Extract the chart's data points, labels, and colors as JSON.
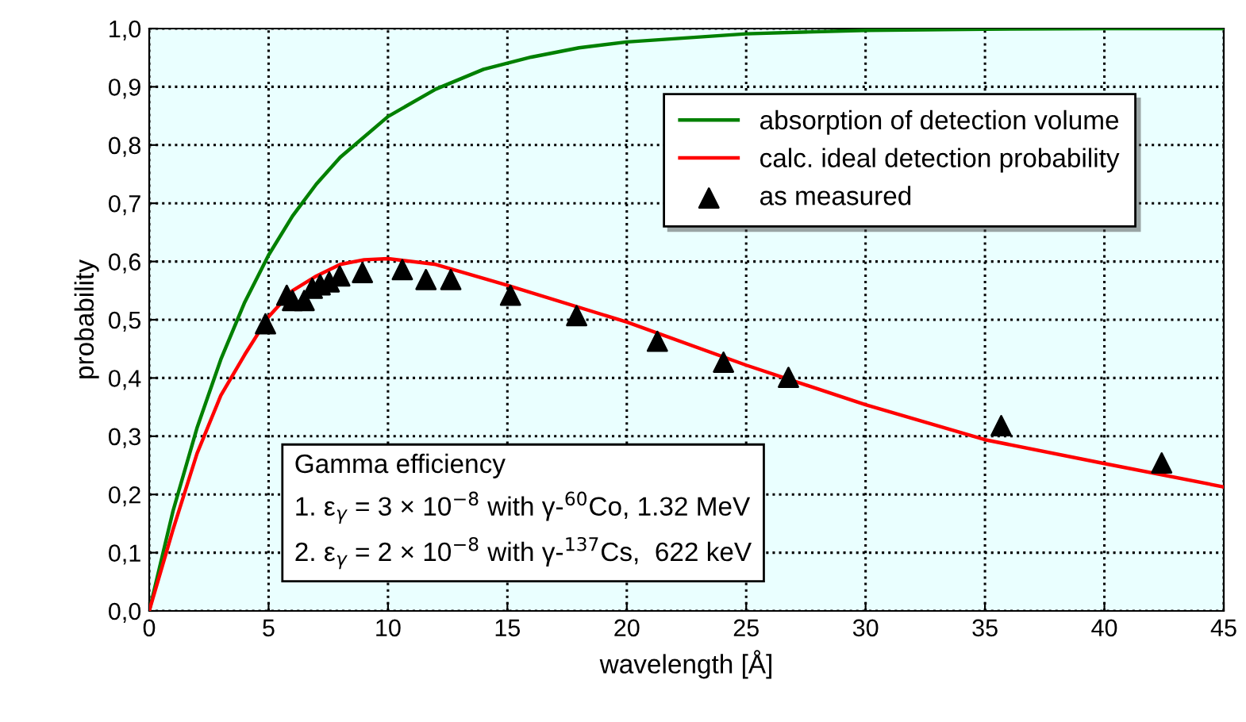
{
  "chart_data": {
    "type": "line",
    "xlabel": "wavelength [Å]",
    "ylabel": "probability",
    "xlim": [
      0,
      45
    ],
    "xticks": [
      0,
      5,
      10,
      15,
      20,
      25,
      30,
      35,
      40,
      45
    ],
    "ylim": [
      0,
      1
    ],
    "yticks": [
      {
        "value": 0,
        "label": "0,0"
      },
      {
        "value": 0.1,
        "label": "0,1"
      },
      {
        "value": 0.2,
        "label": "0,2"
      },
      {
        "value": 0.3,
        "label": "0,3"
      },
      {
        "value": 0.4,
        "label": "0,4"
      },
      {
        "value": 0.5,
        "label": "0,5"
      },
      {
        "value": 0.6,
        "label": "0,6"
      },
      {
        "value": 0.7,
        "label": "0,7"
      },
      {
        "value": 0.8,
        "label": "0,8"
      },
      {
        "value": 0.9,
        "label": "0,9"
      },
      {
        "value": 1,
        "label": "1,0"
      }
    ],
    "grid": true,
    "legend": "top right",
    "series": [
      {
        "name": "absorption of detection volume",
        "color": "#008000",
        "marker": "none",
        "x": [
          0,
          1,
          2,
          3,
          4,
          5,
          6,
          7,
          8,
          10,
          12,
          14,
          16,
          18,
          20,
          25,
          30,
          35,
          40,
          45
        ],
        "values": [
          0,
          0.172,
          0.314,
          0.432,
          0.53,
          0.611,
          0.678,
          0.733,
          0.779,
          0.849,
          0.896,
          0.93,
          0.951,
          0.967,
          0.977,
          0.991,
          0.997,
          0.999,
          1.0,
          1.0
        ]
      },
      {
        "name": "calc. ideal detection probability",
        "color": "#ff0000",
        "marker": "none",
        "x": [
          0,
          1,
          2,
          3,
          4,
          5,
          6,
          7,
          8,
          9,
          10,
          12,
          15,
          20,
          25,
          30,
          35,
          40,
          45
        ],
        "values": [
          0,
          0.14,
          0.27,
          0.37,
          0.44,
          0.505,
          0.55,
          0.575,
          0.595,
          0.603,
          0.605,
          0.595,
          0.559,
          0.496,
          0.422,
          0.354,
          0.294,
          0.253,
          0.213
        ]
      },
      {
        "name": "as measured",
        "type": "scatter",
        "color": "#000000",
        "marker": "triangle",
        "x": [
          4.87,
          5.76,
          6.0,
          6.49,
          6.83,
          7.16,
          7.54,
          7.98,
          8.93,
          10.6,
          11.59,
          12.63,
          15.13,
          17.9,
          21.28,
          24.05,
          26.77,
          35.68,
          42.4
        ],
        "values": [
          0.493,
          0.542,
          0.533,
          0.533,
          0.554,
          0.56,
          0.565,
          0.575,
          0.581,
          0.586,
          0.569,
          0.569,
          0.542,
          0.507,
          0.463,
          0.427,
          0.401,
          0.318,
          0.254
        ]
      }
    ],
    "annotations": [
      "Gamma efficiency",
      "1. ε$_{γ}$ = 3 × 10$^{−8}$ with γ-$^{60}$Co, 1.32 MeV",
      "2. ε$_{γ}$ = 2 × 10$^{−8}$ with γ-$^{137}$Cs,  622 keV"
    ]
  }
}
